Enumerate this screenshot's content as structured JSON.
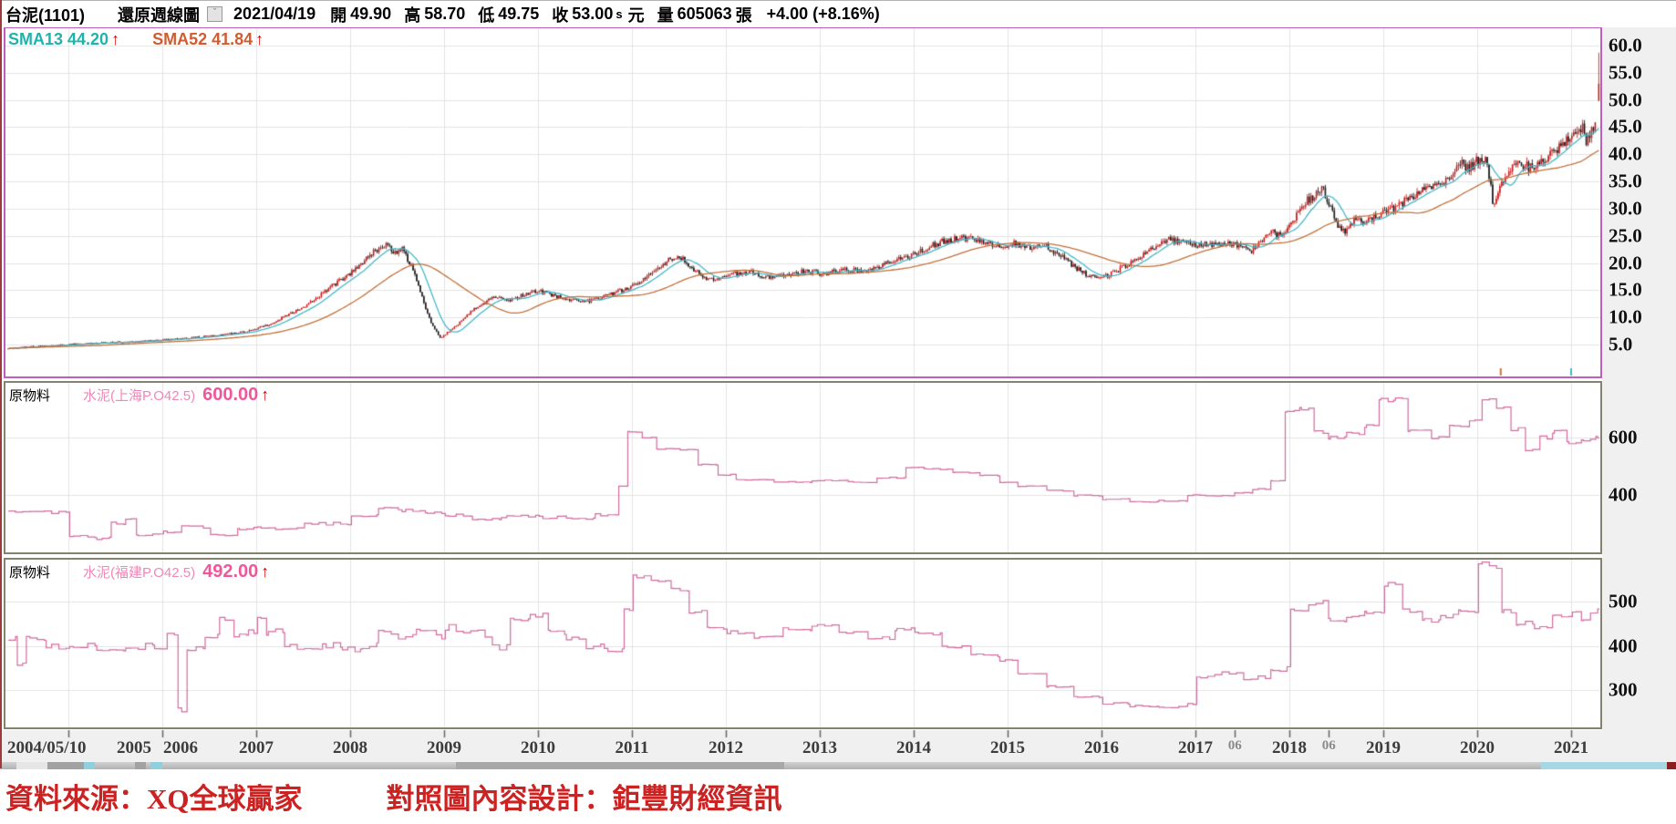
{
  "title_bar": {
    "symbol": "台泥(1101)",
    "chart_type": "還原週線圖",
    "dropdown_glyph": "ˇ",
    "date": "2021/04/19",
    "open_label": "開",
    "open": "49.90",
    "high_label": "高",
    "high": "58.70",
    "low_label": "低",
    "low": "49.75",
    "close_label": "收",
    "close": "53.00",
    "close_flag": "s",
    "unit": "元",
    "volume_label": "量",
    "volume": "605063",
    "volume_unit": "張",
    "change": "+4.00 (+8.16%)"
  },
  "main_panel": {
    "sma13_text": "SMA13 44.20",
    "sma52_text": "SMA52 41.84",
    "up_arrow": "↑"
  },
  "panel2": {
    "category": "原物料",
    "name": "水泥(上海P.O42.5)",
    "value": "600.00",
    "up_arrow": "↑"
  },
  "panel3": {
    "category": "原物料",
    "name": "水泥(福建P.O42.5)",
    "value": "492.00",
    "up_arrow": "↑"
  },
  "x_axis": {
    "first_label": "2004/05/10",
    "years": [
      2005,
      2006,
      2007,
      2008,
      2009,
      2010,
      2011,
      2012,
      2013,
      2014,
      2015,
      2016,
      2017,
      2018,
      2019,
      2020,
      2021
    ],
    "mid_labels": [
      {
        "t": 2017.42,
        "label": "06"
      },
      {
        "t": 2018.42,
        "label": "06"
      }
    ]
  },
  "footer": {
    "source": "資料來源：XQ全球贏家",
    "design": "對照圖內容設計：鉅豐財經資訊"
  },
  "colors": {
    "up": "#c41e1e",
    "down": "#1b1b1b",
    "sma13": "#45b7c9",
    "sma52": "#c2703a",
    "grid": "#e3e3e3",
    "panel_border_main": "#c05ec0",
    "panel_border_sub": "#83836e",
    "pink_line": "#cf6b9e",
    "axis_bg": "#f0f0f0",
    "axis_text": "#101010",
    "tick": "#666666",
    "footer_red": "#cc2222",
    "mark_orange": "#d2703a",
    "mark_cyan": "#45b7c9"
  },
  "chart_data": [
    {
      "type": "candlestick",
      "title": "台泥(1101) 還原週線圖 (weekly, adjusted)",
      "x_range": [
        2004.36,
        2021.31
      ],
      "ylim": [
        0,
        62
      ],
      "y_ticks": [
        {
          "v": 60,
          "label": "60.0"
        },
        {
          "v": 55,
          "label": "55.0"
        },
        {
          "v": 50,
          "label": "50.0"
        },
        {
          "v": 45,
          "label": "45.0"
        },
        {
          "v": 40,
          "label": "40.0"
        },
        {
          "v": 35,
          "label": "35.0"
        },
        {
          "v": 30,
          "label": "30.0"
        },
        {
          "v": 25,
          "label": "25.0"
        },
        {
          "v": 20,
          "label": "20.0"
        },
        {
          "v": 15,
          "label": "15.0"
        },
        {
          "v": 10,
          "label": "10.0"
        },
        {
          "v": 5,
          "label": "5.0"
        }
      ],
      "noise": 0.05,
      "close_anchors": [
        [
          2004.36,
          4.3
        ],
        [
          2004.7,
          4.7
        ],
        [
          2005.0,
          5.0
        ],
        [
          2005.4,
          5.4
        ],
        [
          2005.8,
          5.6
        ],
        [
          2006.2,
          6.1
        ],
        [
          2006.6,
          6.7
        ],
        [
          2006.9,
          7.4
        ],
        [
          2007.15,
          8.8
        ],
        [
          2007.35,
          10.5
        ],
        [
          2007.55,
          12.5
        ],
        [
          2007.75,
          15.0
        ],
        [
          2007.95,
          17.5
        ],
        [
          2008.1,
          19.5
        ],
        [
          2008.25,
          22.0
        ],
        [
          2008.38,
          23.3
        ],
        [
          2008.48,
          21.8
        ],
        [
          2008.56,
          22.6
        ],
        [
          2008.66,
          19.0
        ],
        [
          2008.76,
          14.0
        ],
        [
          2008.86,
          9.0
        ],
        [
          2008.96,
          6.2
        ],
        [
          2009.1,
          8.0
        ],
        [
          2009.25,
          10.5
        ],
        [
          2009.4,
          12.5
        ],
        [
          2009.55,
          13.8
        ],
        [
          2009.7,
          13.0
        ],
        [
          2009.85,
          14.2
        ],
        [
          2010.0,
          15.0
        ],
        [
          2010.15,
          14.0
        ],
        [
          2010.35,
          13.2
        ],
        [
          2010.55,
          13.0
        ],
        [
          2010.75,
          14.2
        ],
        [
          2010.95,
          15.3
        ],
        [
          2011.1,
          16.8
        ],
        [
          2011.25,
          18.5
        ],
        [
          2011.4,
          20.8
        ],
        [
          2011.5,
          21.3
        ],
        [
          2011.62,
          19.5
        ],
        [
          2011.75,
          17.5
        ],
        [
          2011.9,
          16.8
        ],
        [
          2012.05,
          17.8
        ],
        [
          2012.25,
          18.3
        ],
        [
          2012.45,
          17.3
        ],
        [
          2012.65,
          17.9
        ],
        [
          2012.85,
          18.5
        ],
        [
          2013.05,
          18.0
        ],
        [
          2013.25,
          18.9
        ],
        [
          2013.45,
          18.5
        ],
        [
          2013.65,
          19.5
        ],
        [
          2013.85,
          20.8
        ],
        [
          2014.05,
          22.0
        ],
        [
          2014.2,
          23.2
        ],
        [
          2014.35,
          24.2
        ],
        [
          2014.5,
          24.8
        ],
        [
          2014.65,
          24.2
        ],
        [
          2014.8,
          23.6
        ],
        [
          2014.95,
          23.0
        ],
        [
          2015.1,
          23.6
        ],
        [
          2015.25,
          22.6
        ],
        [
          2015.4,
          23.2
        ],
        [
          2015.55,
          21.5
        ],
        [
          2015.7,
          19.5
        ],
        [
          2015.85,
          17.8
        ],
        [
          2015.97,
          17.0
        ],
        [
          2016.1,
          18.0
        ],
        [
          2016.25,
          19.5
        ],
        [
          2016.4,
          21.0
        ],
        [
          2016.55,
          23.0
        ],
        [
          2016.7,
          24.3
        ],
        [
          2016.85,
          23.8
        ],
        [
          2017.0,
          23.5
        ],
        [
          2017.15,
          23.2
        ],
        [
          2017.3,
          23.6
        ],
        [
          2017.45,
          23.2
        ],
        [
          2017.6,
          22.3
        ],
        [
          2017.7,
          24.0
        ],
        [
          2017.8,
          25.8
        ],
        [
          2017.9,
          25.0
        ],
        [
          2018.0,
          26.8
        ],
        [
          2018.1,
          29.5
        ],
        [
          2018.18,
          31.5
        ],
        [
          2018.28,
          32.5
        ],
        [
          2018.36,
          33.5
        ],
        [
          2018.44,
          30.0
        ],
        [
          2018.52,
          26.5
        ],
        [
          2018.6,
          26.0
        ],
        [
          2018.68,
          27.8
        ],
        [
          2018.78,
          27.5
        ],
        [
          2018.88,
          28.2
        ],
        [
          2019.0,
          29.3
        ],
        [
          2019.15,
          30.5
        ],
        [
          2019.3,
          32.0
        ],
        [
          2019.45,
          33.5
        ],
        [
          2019.6,
          34.6
        ],
        [
          2019.72,
          35.8
        ],
        [
          2019.82,
          38.5
        ],
        [
          2019.9,
          37.2
        ],
        [
          2020.0,
          38.8
        ],
        [
          2020.1,
          39.6
        ],
        [
          2020.17,
          30.5
        ],
        [
          2020.25,
          35.0
        ],
        [
          2020.35,
          37.0
        ],
        [
          2020.45,
          38.5
        ],
        [
          2020.55,
          37.5
        ],
        [
          2020.65,
          38.2
        ],
        [
          2020.75,
          39.5
        ],
        [
          2020.85,
          41.0
        ],
        [
          2020.95,
          42.5
        ],
        [
          2021.05,
          44.3
        ],
        [
          2021.12,
          44.8
        ],
        [
          2021.17,
          42.0
        ],
        [
          2021.22,
          44.5
        ],
        [
          2021.26,
          46.5
        ],
        [
          2021.29,
          49.0
        ]
      ],
      "last_candle": {
        "date": "2021/04/19",
        "open": 49.9,
        "high": 58.7,
        "low": 49.75,
        "close": 53.0
      },
      "smas": [
        {
          "period": 13,
          "last_value": 44.2
        },
        {
          "period": 52,
          "last_value": 41.84
        }
      ],
      "bottom_marks": [
        {
          "t": 2020.25,
          "color_key": "mark_orange"
        },
        {
          "t": 2021.0,
          "color_key": "mark_cyan"
        }
      ]
    },
    {
      "type": "line",
      "title": "原物料 水泥(上海P.O42.5)",
      "current": 600.0,
      "x_range": [
        2004.36,
        2021.31
      ],
      "y_ticks": [
        {
          "v": 600,
          "label": "600"
        },
        {
          "v": 400,
          "label": "400"
        }
      ],
      "jitter": [
        [
          2010.8,
          5
        ],
        [
          2017.9,
          2
        ],
        [
          2022,
          6
        ]
      ],
      "anchors": [
        [
          2004.36,
          340
        ],
        [
          2004.9,
          340
        ],
        [
          2005.0,
          255
        ],
        [
          2005.3,
          248
        ],
        [
          2005.45,
          300
        ],
        [
          2005.6,
          318
        ],
        [
          2005.72,
          262
        ],
        [
          2006.0,
          272
        ],
        [
          2006.2,
          288
        ],
        [
          2006.5,
          258
        ],
        [
          2006.8,
          282
        ],
        [
          2007.0,
          284
        ],
        [
          2007.5,
          300
        ],
        [
          2008.0,
          330
        ],
        [
          2008.3,
          352
        ],
        [
          2008.55,
          345
        ],
        [
          2008.8,
          338
        ],
        [
          2009.0,
          330
        ],
        [
          2009.3,
          318
        ],
        [
          2009.6,
          325
        ],
        [
          2010.0,
          322
        ],
        [
          2010.3,
          315
        ],
        [
          2010.6,
          330
        ],
        [
          2010.85,
          430
        ],
        [
          2010.95,
          620
        ],
        [
          2011.1,
          600
        ],
        [
          2011.25,
          560
        ],
        [
          2011.5,
          558
        ],
        [
          2011.7,
          505
        ],
        [
          2011.9,
          470
        ],
        [
          2012.1,
          452
        ],
        [
          2012.5,
          445
        ],
        [
          2012.9,
          450
        ],
        [
          2013.3,
          445
        ],
        [
          2013.6,
          460
        ],
        [
          2013.9,
          495
        ],
        [
          2014.1,
          490
        ],
        [
          2014.4,
          478
        ],
        [
          2014.7,
          468
        ],
        [
          2014.9,
          445
        ],
        [
          2015.1,
          430
        ],
        [
          2015.4,
          415
        ],
        [
          2015.7,
          398
        ],
        [
          2016.0,
          385
        ],
        [
          2016.3,
          375
        ],
        [
          2016.6,
          380
        ],
        [
          2016.9,
          400
        ],
        [
          2017.1,
          398
        ],
        [
          2017.4,
          408
        ],
        [
          2017.6,
          420
        ],
        [
          2017.8,
          450
        ],
        [
          2017.95,
          690
        ],
        [
          2018.1,
          700
        ],
        [
          2018.25,
          620
        ],
        [
          2018.4,
          600
        ],
        [
          2018.6,
          615
        ],
        [
          2018.8,
          640
        ],
        [
          2018.95,
          730
        ],
        [
          2019.1,
          735
        ],
        [
          2019.25,
          620
        ],
        [
          2019.5,
          600
        ],
        [
          2019.7,
          640
        ],
        [
          2019.9,
          660
        ],
        [
          2020.05,
          730
        ],
        [
          2020.2,
          700
        ],
        [
          2020.35,
          630
        ],
        [
          2020.5,
          560
        ],
        [
          2020.65,
          600
        ],
        [
          2020.8,
          620
        ],
        [
          2020.95,
          580
        ],
        [
          2021.1,
          590
        ],
        [
          2021.25,
          600
        ],
        [
          2021.31,
          600
        ]
      ]
    },
    {
      "type": "line",
      "title": "原物料 水泥(福建P.O42.5)",
      "current": 492.0,
      "x_range": [
        2004.36,
        2021.31
      ],
      "y_ticks": [
        {
          "v": 500,
          "label": "500"
        },
        {
          "v": 400,
          "label": "400"
        },
        {
          "v": 300,
          "label": "300"
        }
      ],
      "jitter": [
        [
          2011,
          8
        ],
        [
          2014.9,
          4
        ],
        [
          2017,
          2
        ],
        [
          2022,
          6
        ]
      ],
      "anchors": [
        [
          2004.36,
          420
        ],
        [
          2004.45,
          355
        ],
        [
          2004.55,
          415
        ],
        [
          2004.75,
          398
        ],
        [
          2005.0,
          402
        ],
        [
          2005.3,
          392
        ],
        [
          2005.6,
          398
        ],
        [
          2005.9,
          390
        ],
        [
          2006.05,
          420
        ],
        [
          2006.15,
          255
        ],
        [
          2006.25,
          395
        ],
        [
          2006.45,
          420
        ],
        [
          2006.6,
          458
        ],
        [
          2006.75,
          420
        ],
        [
          2006.9,
          432
        ],
        [
          2007.0,
          468
        ],
        [
          2007.1,
          430
        ],
        [
          2007.3,
          398
        ],
        [
          2007.5,
          388
        ],
        [
          2007.7,
          400
        ],
        [
          2007.9,
          394
        ],
        [
          2008.1,
          400
        ],
        [
          2008.3,
          428
        ],
        [
          2008.5,
          418
        ],
        [
          2008.7,
          430
        ],
        [
          2008.9,
          420
        ],
        [
          2009.0,
          440
        ],
        [
          2009.2,
          428
        ],
        [
          2009.5,
          398
        ],
        [
          2009.7,
          458
        ],
        [
          2009.9,
          468
        ],
        [
          2010.1,
          430
        ],
        [
          2010.3,
          418
        ],
        [
          2010.5,
          398
        ],
        [
          2010.7,
          388
        ],
        [
          2010.9,
          478
        ],
        [
          2011.0,
          558
        ],
        [
          2011.2,
          545
        ],
        [
          2011.4,
          528
        ],
        [
          2011.6,
          478
        ],
        [
          2011.8,
          440
        ],
        [
          2012.0,
          430
        ],
        [
          2012.3,
          418
        ],
        [
          2012.6,
          438
        ],
        [
          2012.9,
          448
        ],
        [
          2013.2,
          430
        ],
        [
          2013.5,
          418
        ],
        [
          2013.8,
          438
        ],
        [
          2014.0,
          428
        ],
        [
          2014.3,
          398
        ],
        [
          2014.6,
          378
        ],
        [
          2014.9,
          368
        ],
        [
          2015.1,
          338
        ],
        [
          2015.4,
          308
        ],
        [
          2015.7,
          285
        ],
        [
          2016.0,
          270
        ],
        [
          2016.3,
          264
        ],
        [
          2016.6,
          262
        ],
        [
          2016.9,
          268
        ],
        [
          2017.0,
          330
        ],
        [
          2017.2,
          340
        ],
        [
          2017.5,
          328
        ],
        [
          2017.8,
          348
        ],
        [
          2018.0,
          478
        ],
        [
          2018.2,
          498
        ],
        [
          2018.4,
          458
        ],
        [
          2018.6,
          468
        ],
        [
          2018.8,
          478
        ],
        [
          2019.0,
          538
        ],
        [
          2019.2,
          478
        ],
        [
          2019.4,
          458
        ],
        [
          2019.6,
          468
        ],
        [
          2019.8,
          478
        ],
        [
          2020.0,
          588
        ],
        [
          2020.12,
          578
        ],
        [
          2020.25,
          478
        ],
        [
          2020.4,
          450
        ],
        [
          2020.6,
          440
        ],
        [
          2020.8,
          468
        ],
        [
          2021.0,
          478
        ],
        [
          2021.1,
          458
        ],
        [
          2021.2,
          478
        ],
        [
          2021.31,
          492
        ]
      ]
    }
  ]
}
